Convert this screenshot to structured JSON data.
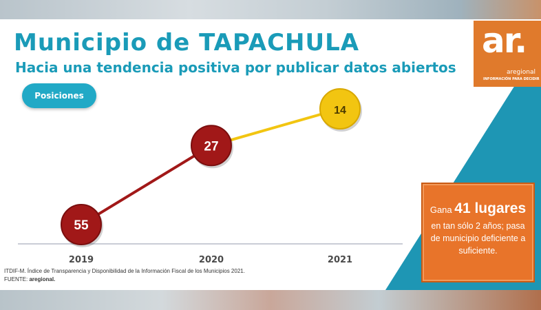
{
  "title": "Municipio de TAPACHULA",
  "subtitle": "Hacia una tendencia positiva por publicar datos abiertos",
  "legend_pill": "Posiciones",
  "logo": {
    "mark": "ar.",
    "name": "aregional",
    "tagline": "INFORMACIÓN PARA DECIDIR"
  },
  "callout": {
    "prefix": "Gana",
    "highlight": "41 lugares",
    "text": "en tan sólo 2 años; pasa de municipio deficiente a suficiente."
  },
  "footnote": {
    "line1": "ITDIF-M. Índice de Transparencia y Disponibilidad de la Información Fiscal de los Municipios 2021.",
    "source_label": "FUENTE:",
    "source_value": "aregional."
  },
  "colors": {
    "teal": "#1a9bb8",
    "red": "#a11818",
    "yellow": "#f2c511",
    "orange": "#e8742a"
  },
  "chart_data": {
    "type": "line",
    "categories": [
      "2019",
      "2020",
      "2021"
    ],
    "series": [
      {
        "name": "Posiciones",
        "values": [
          55,
          27,
          14
        ]
      }
    ],
    "ylim": [
      60,
      0
    ],
    "inverted_y": true,
    "grid": false,
    "point_colors": [
      "#a11818",
      "#a11818",
      "#f2c511"
    ]
  }
}
